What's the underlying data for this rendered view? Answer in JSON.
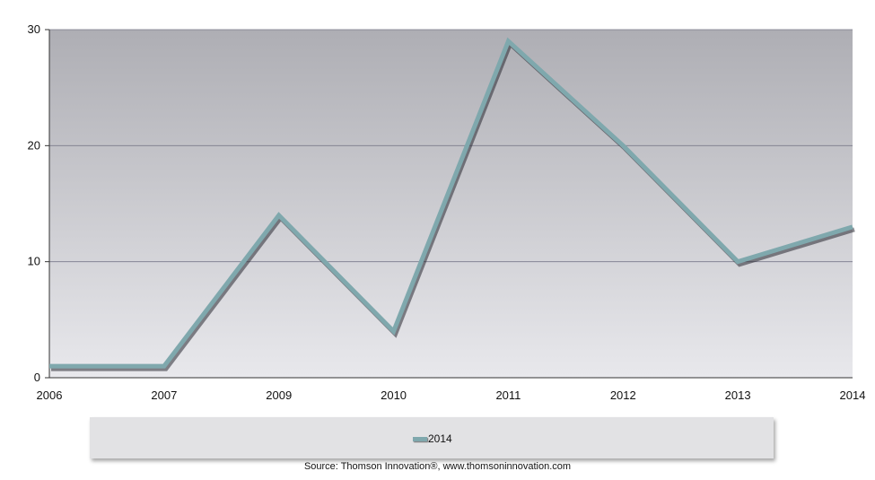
{
  "chart_data": {
    "type": "line",
    "categories": [
      "2006",
      "2007",
      "2009",
      "2010",
      "2011",
      "2012",
      "2013",
      "2014"
    ],
    "series": [
      {
        "name": "2014",
        "values": [
          1,
          1,
          14,
          4,
          29,
          20,
          10,
          13
        ]
      }
    ],
    "y_ticks": [
      "0",
      "10",
      "20",
      "30"
    ],
    "ylim": [
      0,
      30
    ],
    "grid": true,
    "legend_position": "bottom",
    "colors": {
      "line": "#7fa8ad",
      "grid": "#7a7a8a",
      "plot_top": "#aeaeb4",
      "plot_bottom": "#e8e8ec"
    }
  },
  "source_text": "Source: Thomson Innovation®, www.thomsoninnovation.com"
}
